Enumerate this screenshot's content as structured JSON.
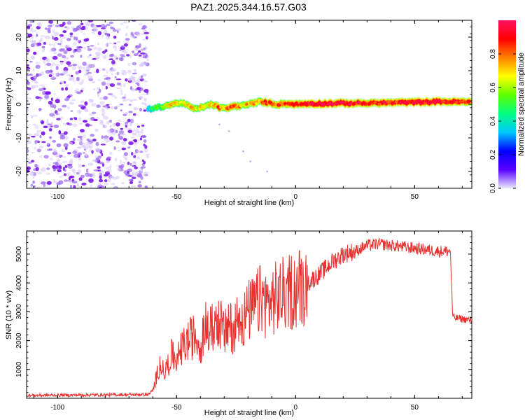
{
  "title": "PAZ1.2025.344.16.57.G03",
  "colors": {
    "snr_line": "#e8312e",
    "axis": "#000000",
    "scatter_dot": "#7a18e8"
  },
  "chart_data": [
    {
      "type": "heatmap",
      "name": "spectrogram",
      "xlabel": "Height of straight line (km)",
      "ylabel": "Frequency (Hz)",
      "xlim": [
        -113,
        74
      ],
      "ylim": [
        -25,
        25
      ],
      "xticks": [
        -100,
        -50,
        0,
        50
      ],
      "yticks": [
        -20,
        -10,
        0,
        10,
        20
      ],
      "noise_region": {
        "x": [
          -113,
          -62
        ],
        "y": [
          -25,
          25
        ],
        "description": "sparse low-amplitude noise"
      },
      "ridge": {
        "x": [
          -62,
          -58,
          -55,
          -52,
          -48,
          -45,
          -42,
          -38,
          -35,
          -32,
          -30,
          -28,
          -25,
          -22,
          -18,
          -15,
          -12,
          -8,
          -5,
          0,
          5,
          10,
          20,
          30,
          40,
          50,
          60,
          70,
          74
        ],
        "freq_hz": [
          -1.5,
          -1,
          -0.5,
          0,
          0.5,
          -0.5,
          -1.5,
          -0.5,
          0,
          -1,
          -1.2,
          -1,
          -0.5,
          -0.3,
          0.2,
          0.8,
          0.5,
          0,
          0.2,
          0,
          0.2,
          0.2,
          0.3,
          0.3,
          0.5,
          0.6,
          0.8,
          0.7,
          0.6
        ],
        "amplitude": [
          0.35,
          0.5,
          0.6,
          0.7,
          0.65,
          0.75,
          0.6,
          0.7,
          0.72,
          0.8,
          0.65,
          0.85,
          0.8,
          0.7,
          0.75,
          0.75,
          0.85,
          0.8,
          0.8,
          0.85,
          0.9,
          0.95,
          0.92,
          0.9,
          0.88,
          0.9,
          0.92,
          0.9,
          0.85
        ]
      },
      "colorbar": {
        "label": "Normalized spectral amplitude",
        "range": [
          0,
          1
        ],
        "ticks": [
          "0.0",
          "0.2",
          "0.4",
          "0.6",
          "0.8"
        ],
        "colormap": [
          "#e8e8ff",
          "#5a00ff",
          "#0000ff",
          "#00c8ff",
          "#00ff80",
          "#60ff00",
          "#ffff00",
          "#ff8000",
          "#ff0000",
          "#ff1060"
        ]
      }
    },
    {
      "type": "line",
      "name": "snr",
      "xlabel": "Height of straight line (km)",
      "ylabel": "SNR (10 * v/v)",
      "xlim": [
        -113,
        74
      ],
      "ylim": [
        0,
        5800
      ],
      "xticks": [
        -100,
        -50,
        0,
        50
      ],
      "yticks": [
        1000,
        2000,
        3000,
        4000,
        5000
      ],
      "series": [
        {
          "name": "SNR",
          "x": [
            -113,
            -100,
            -80,
            -62,
            -60,
            -57,
            -55,
            -52,
            -50,
            -48,
            -45,
            -42,
            -40,
            -38,
            -36,
            -34,
            -32,
            -30,
            -28,
            -26,
            -24,
            -22,
            -20,
            -18,
            -16,
            -14,
            -12,
            -10,
            -8,
            -5,
            0,
            5,
            10,
            15,
            20,
            25,
            30,
            35,
            40,
            45,
            50,
            55,
            60,
            65,
            66,
            70,
            74
          ],
          "y": [
            100,
            110,
            120,
            130,
            250,
            1200,
            900,
            1500,
            1300,
            1700,
            2000,
            2200,
            1800,
            2500,
            2300,
            2600,
            2700,
            2200,
            2500,
            2400,
            2900,
            2700,
            3000,
            3100,
            3300,
            3500,
            3200,
            3400,
            3500,
            3600,
            3800,
            4000,
            4300,
            4700,
            5000,
            5100,
            5300,
            5350,
            5300,
            5250,
            5200,
            5150,
            5100,
            5100,
            2800,
            2750,
            2700
          ]
        }
      ]
    }
  ]
}
